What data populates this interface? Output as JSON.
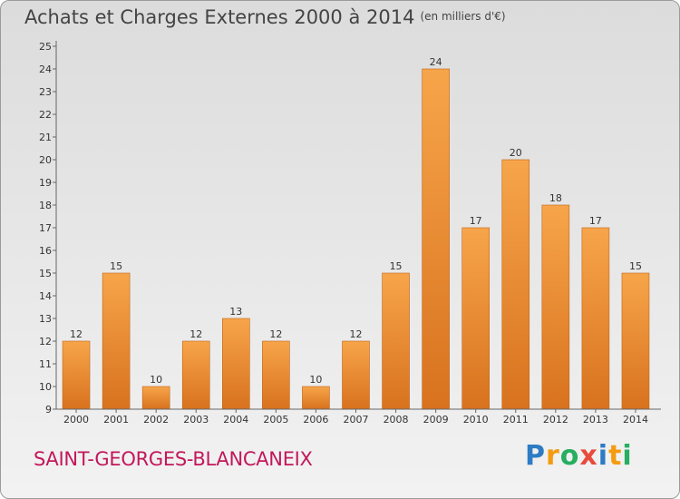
{
  "header": {
    "title": "Achats et Charges Externes 2000 à 2014",
    "unit": "(en milliers d'€)"
  },
  "footer": {
    "town": "SAINT-GEORGES-BLANCANEIX"
  },
  "logo": {
    "letters": [
      "P",
      "r",
      "o",
      "x",
      "i",
      "t",
      "i"
    ],
    "colors": [
      "#2e7bc4",
      "#f39c12",
      "#27ae60",
      "#e74c3c",
      "#2e7bc4",
      "#f39c12",
      "#27ae60"
    ]
  },
  "chart_data": {
    "type": "bar",
    "categories": [
      "2000",
      "2001",
      "2002",
      "2003",
      "2004",
      "2005",
      "2006",
      "2007",
      "2008",
      "2009",
      "2010",
      "2011",
      "2012",
      "2013",
      "2014"
    ],
    "values": [
      12,
      15,
      10,
      12,
      13,
      12,
      10,
      12,
      15,
      24,
      17,
      20,
      18,
      17,
      15
    ],
    "data_labels": [
      "12",
      "15",
      "10",
      "12",
      "13",
      "12",
      "10",
      "12",
      "15",
      "24",
      "17",
      "20",
      "18",
      "17",
      "15"
    ],
    "title": "Achats et Charges Externes 2000 à 2014",
    "ylim": [
      9,
      25
    ],
    "yticks": [
      "9",
      "10",
      "11",
      "12",
      "13",
      "14",
      "15",
      "16",
      "17",
      "18",
      "19",
      "20",
      "21",
      "22",
      "23",
      "24",
      "25"
    ],
    "grid": false,
    "bar_color_top": "#f7a54a",
    "bar_color_bottom": "#d8721e"
  }
}
